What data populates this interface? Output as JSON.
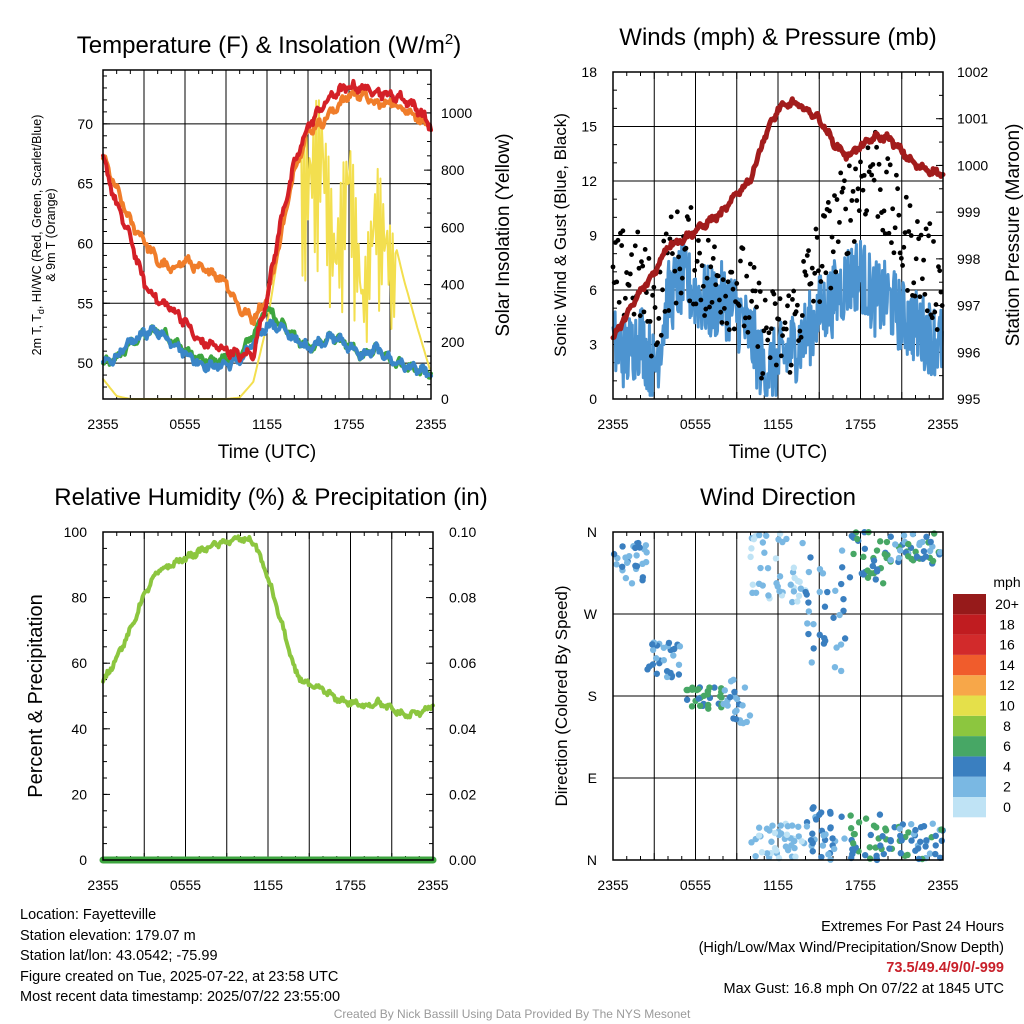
{
  "chart_data": [
    {
      "id": "temperature",
      "type": "line",
      "title": "Temperature (F) & Insolation (W/m²)",
      "xlabel": "Time (UTC)",
      "ylabel": "2m T, Td, HI/WC (Red, Green, Scarlet/Blue) & 9m T (Orange)",
      "ylabel_line1": "2m T, T",
      "ylabel_sub": "d",
      "ylabel_line1b": ", HI/WC (Red, Green, Scarlet/Blue)",
      "ylabel_line2": "& 9m T (Orange)",
      "y2label": "Solar Insolation (Yellow)",
      "x_ticks": [
        "2355",
        "0555",
        "1155",
        "1755",
        "2355"
      ],
      "ylim": [
        47,
        74.5
      ],
      "y_ticks": [
        50,
        55,
        60,
        65,
        70
      ],
      "y2lim": [
        0,
        1150
      ],
      "y2_ticks": [
        0,
        200,
        400,
        600,
        800,
        1000
      ],
      "grid": true,
      "x": [
        0,
        1,
        2,
        3,
        4,
        5,
        6,
        7,
        8,
        9,
        10,
        11,
        12,
        13,
        14,
        15,
        16,
        17,
        18,
        19,
        20,
        21,
        22,
        23,
        24
      ],
      "series": [
        {
          "key": "t9m",
          "color": "#f07d2a",
          "axis": "left",
          "values": [
            67.2,
            64.5,
            61.8,
            60.3,
            58.5,
            57.8,
            58.6,
            57.9,
            57.6,
            56.8,
            54.5,
            53.7,
            55.4,
            60.5,
            66.2,
            69.4,
            70.1,
            71.3,
            72.4,
            72.5,
            71.6,
            71.8,
            71.3,
            70.6,
            69.6
          ]
        },
        {
          "key": "t2m",
          "color": "#d42027",
          "axis": "left",
          "values": [
            67.1,
            63.2,
            60.5,
            56.7,
            55.2,
            54.6,
            53.5,
            51.8,
            51.5,
            51.1,
            50.6,
            50.8,
            55.5,
            61.8,
            66.6,
            69.8,
            71.4,
            72.6,
            73.1,
            73.0,
            72.7,
            72.4,
            72.1,
            71.3,
            69.8
          ]
        },
        {
          "key": "td",
          "color": "#3da53f",
          "axis": "left",
          "values": [
            49.9,
            50.4,
            51.6,
            52.4,
            52.8,
            52.0,
            51.1,
            50.3,
            50.1,
            50.3,
            50.6,
            52.5,
            54.6,
            53.4,
            52.1,
            51.3,
            51.8,
            52.2,
            51.4,
            50.6,
            51.2,
            50.3,
            49.8,
            49.5,
            49.0
          ]
        },
        {
          "key": "hiwc",
          "color": "#3a86c8",
          "axis": "left",
          "values": [
            50.0,
            50.5,
            51.7,
            52.5,
            52.7,
            51.8,
            50.9,
            50.0,
            49.7,
            49.9,
            50.2,
            51.6,
            53.2,
            53.0,
            52.0,
            51.3,
            51.8,
            52.2,
            51.4,
            50.6,
            51.2,
            50.3,
            49.8,
            49.5,
            49.0
          ]
        },
        {
          "key": "solar",
          "color": "#f3df4f",
          "axis": "right",
          "values": [
            70,
            10,
            0,
            0,
            0,
            0,
            0,
            0,
            0,
            0,
            5,
            60,
            260,
            560,
            820,
            960,
            1100,
            600,
            1000,
            420,
            840,
            620,
            420,
            250,
            90
          ]
        }
      ]
    },
    {
      "id": "winds",
      "type": "scatter",
      "title": "Winds (mph) & Pressure (mb)",
      "xlabel": "Time (UTC)",
      "ylabel": "Sonic Wind & Gust (Blue, Black)",
      "y2label": "Station Pressure (Maroon)",
      "x_ticks": [
        "2355",
        "0555",
        "1155",
        "1755",
        "2355"
      ],
      "ylim": [
        0,
        18
      ],
      "y_ticks": [
        0,
        3,
        6,
        9,
        12,
        15,
        18
      ],
      "y2lim": [
        995,
        1002
      ],
      "y2_ticks": [
        995,
        996,
        997,
        998,
        999,
        1000,
        1001,
        1002
      ],
      "grid": true,
      "x": [
        0,
        1,
        2,
        3,
        4,
        5,
        6,
        7,
        8,
        9,
        10,
        11,
        12,
        13,
        14,
        15,
        16,
        17,
        18,
        19,
        20,
        21,
        22,
        23,
        24
      ],
      "series": [
        {
          "key": "wind",
          "color": "#4d94d0",
          "axis": "left",
          "values": [
            3.0,
            2.5,
            3.5,
            1.5,
            5.5,
            6.5,
            5.8,
            5.2,
            5.5,
            4.8,
            3.5,
            1.5,
            2.0,
            2.8,
            3.5,
            4.8,
            5.5,
            6.5,
            7.0,
            5.5,
            5.5,
            4.5,
            4.0,
            3.5,
            3.0
          ]
        },
        {
          "key": "gust",
          "color": "#000000",
          "axis": "left",
          "values": [
            6.0,
            7.0,
            6.5,
            4.5,
            7.5,
            8.0,
            7.8,
            6.5,
            6.5,
            6.5,
            5.0,
            3.5,
            3.5,
            4.0,
            6.0,
            7.5,
            9.0,
            10.5,
            12.0,
            13.0,
            10.5,
            9.0,
            8.0,
            7.0,
            6.0
          ]
        },
        {
          "key": "pressure",
          "color": "#a21c1c",
          "axis": "right",
          "values": [
            996.3,
            996.8,
            997.3,
            997.7,
            998.3,
            998.4,
            998.6,
            998.8,
            999.0,
            999.4,
            999.7,
            1000.6,
            1001.2,
            1001.35,
            1001.2,
            1001.0,
            1000.5,
            1000.2,
            1000.4,
            1000.6,
            1000.6,
            1000.3,
            1000.0,
            999.9,
            999.8
          ]
        }
      ]
    },
    {
      "id": "humidity",
      "type": "line",
      "title": "Relative Humidity (%) & Precipitation (in)",
      "ylabel": "Percent & Precipitation",
      "x_ticks": [
        "2355",
        "0555",
        "1155",
        "1755",
        "2355"
      ],
      "ylim": [
        0,
        100
      ],
      "y_ticks": [
        0,
        20,
        40,
        60,
        80,
        100
      ],
      "y2lim": [
        0,
        0.1
      ],
      "y2_ticks": [
        "0.00",
        "0.02",
        "0.04",
        "0.06",
        "0.08",
        "0.10"
      ],
      "grid": true,
      "x": [
        0,
        1,
        2,
        3,
        4,
        5,
        6,
        7,
        8,
        9,
        10,
        11,
        12,
        13,
        14,
        15,
        16,
        17,
        18,
        19,
        20,
        21,
        22,
        23,
        24
      ],
      "series": [
        {
          "key": "rh",
          "color": "#8cc63f",
          "axis": "left",
          "values": [
            54,
            62,
            70,
            81,
            88,
            90,
            92,
            94,
            96,
            97,
            98,
            97,
            86,
            72,
            57,
            53,
            52,
            49,
            48,
            47,
            48,
            46,
            44,
            45,
            47
          ]
        },
        {
          "key": "precip",
          "color": "#3da53f",
          "axis": "right",
          "values": [
            0,
            0,
            0,
            0,
            0,
            0,
            0,
            0,
            0,
            0,
            0,
            0,
            0,
            0,
            0,
            0,
            0,
            0,
            0,
            0,
            0,
            0,
            0,
            0,
            0
          ]
        }
      ]
    },
    {
      "id": "direction",
      "type": "scatter",
      "title": "Wind Direction",
      "ylabel": "Direction (Colored By Speed)",
      "x_ticks": [
        "2355",
        "0555",
        "1155",
        "1755",
        "2355"
      ],
      "y_ticks": [
        "N",
        "E",
        "S",
        "W",
        "N"
      ],
      "ylim": [
        0,
        360
      ],
      "grid": true,
      "colorbar_title": "mph",
      "colorbar_labels": [
        "0",
        "2",
        "4",
        "6",
        "8",
        "10",
        "12",
        "14",
        "16",
        "18",
        "20+"
      ],
      "colorbar_colors": [
        "#bfe3f5",
        "#7ab8e3",
        "#3a7fc0",
        "#47a765",
        "#8cc63f",
        "#e5e04a",
        "#f7a749",
        "#f05c2c",
        "#d22a2b",
        "#c01c20",
        "#961a1a"
      ],
      "groups": [
        {
          "hours": [
            0,
            2.5
          ],
          "dir": [
            300,
            350
          ],
          "speed": [
            2,
            4
          ]
        },
        {
          "hours": [
            2.5,
            5
          ],
          "dir": [
            200,
            240
          ],
          "speed": [
            2,
            5
          ]
        },
        {
          "hours": [
            5,
            8
          ],
          "dir": [
            165,
            190
          ],
          "speed": [
            4,
            7
          ]
        },
        {
          "hours": [
            8,
            10
          ],
          "dir": [
            150,
            200
          ],
          "speed": [
            1,
            4
          ]
        },
        {
          "hours": [
            10,
            14
          ],
          "dir": [
            0,
            40
          ],
          "speed": [
            0,
            3
          ]
        },
        {
          "hours": [
            10,
            14
          ],
          "dir": [
            280,
            360
          ],
          "speed": [
            0,
            3
          ]
        },
        {
          "hours": [
            14,
            17
          ],
          "dir": [
            0,
            60
          ],
          "speed": [
            2,
            5
          ]
        },
        {
          "hours": [
            14,
            17
          ],
          "dir": [
            200,
            340
          ],
          "speed": [
            1,
            5
          ]
        },
        {
          "hours": [
            17,
            20
          ],
          "dir": [
            0,
            50
          ],
          "speed": [
            3,
            7
          ]
        },
        {
          "hours": [
            17,
            20
          ],
          "dir": [
            300,
            360
          ],
          "speed": [
            3,
            7
          ]
        },
        {
          "hours": [
            20,
            24
          ],
          "dir": [
            0,
            40
          ],
          "speed": [
            2,
            6
          ]
        },
        {
          "hours": [
            20,
            24
          ],
          "dir": [
            325,
            360
          ],
          "speed": [
            2,
            6
          ]
        }
      ]
    }
  ],
  "info": {
    "location": "Location: Fayetteville",
    "elevation": "Station elevation: 179.07 m",
    "latlon": "Station lat/lon: 43.0542; -75.99",
    "created": "Figure created on Tue, 2025-07-22, at 23:58 UTC",
    "recent": "Most recent data timestamp: 2025/07/22 23:55:00"
  },
  "extremes": {
    "title": "Extremes For Past 24 Hours",
    "subtitle": "(High/Low/Max Wind/Precipitation/Snow Depth)",
    "values": "73.5/49.4/9/0/-999",
    "max_gust": "Max Gust: 16.8 mph On 07/22 at 1845 UTC"
  },
  "credit": "Created By Nick Bassill Using Data Provided By The NYS Mesonet"
}
